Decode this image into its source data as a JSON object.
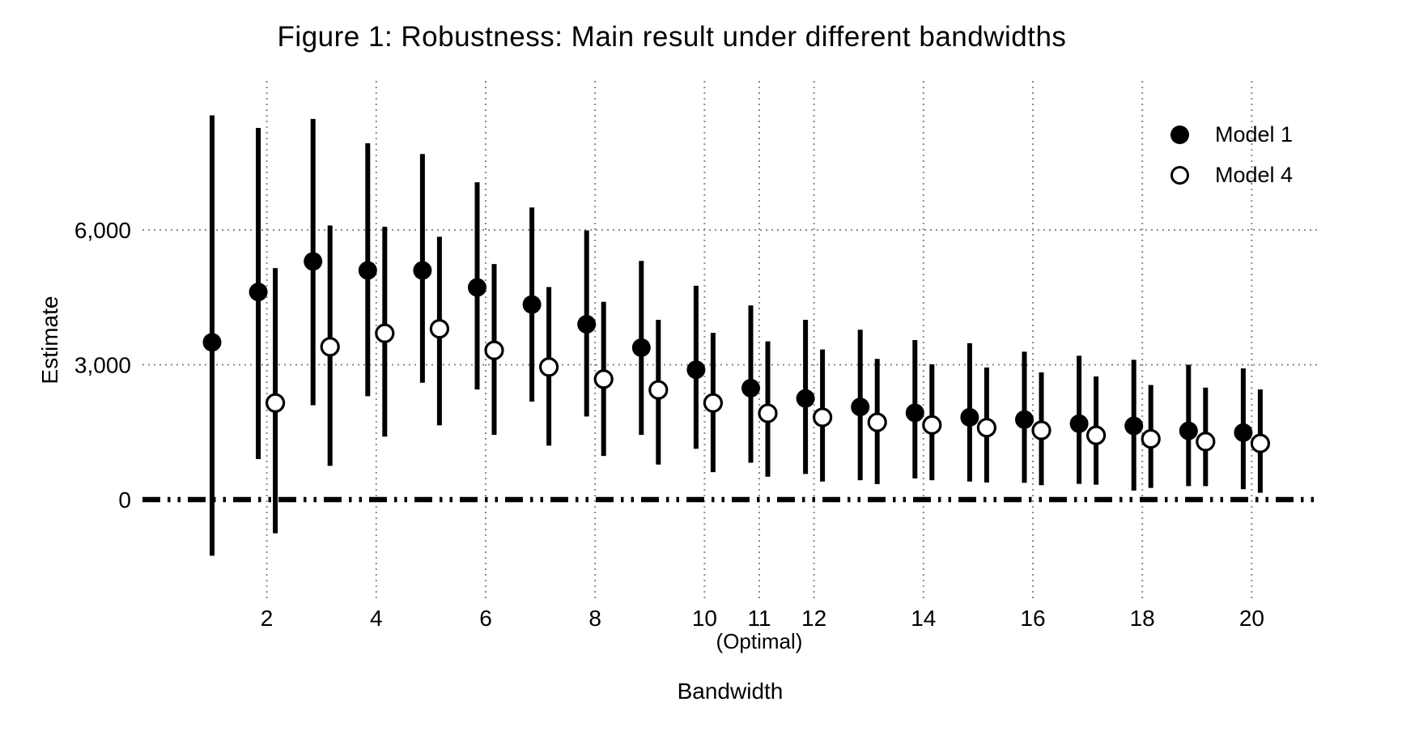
{
  "title": "Figure 1: Robustness: Main result under different bandwidths",
  "legend": [
    {
      "label": "Model 1",
      "marker": "filled-circle"
    },
    {
      "label": "Model 4",
      "marker": "open-circle"
    }
  ],
  "colors": {
    "foreground": "#000000",
    "background": "#ffffff",
    "gridline": "#8a8a8a",
    "model1_fill": "#000000",
    "model4_fill": "#ffffff"
  },
  "chart_data": {
    "type": "scatter",
    "subtype": "dot-and-whisker coefficient plot",
    "title": "Figure 1: Robustness: Main result under different bandwidths",
    "xlabel": "Bandwidth",
    "ylabel": "Estimate",
    "xlim": [
      -0.3,
      21.2
    ],
    "ylim": [
      -2250,
      9310
    ],
    "grid": "dotted",
    "legend_position": "top-right",
    "reference_line_y": 0,
    "x_ticks": [
      {
        "value": 2,
        "label": "2"
      },
      {
        "value": 4,
        "label": "4"
      },
      {
        "value": 6,
        "label": "6"
      },
      {
        "value": 8,
        "label": "8"
      },
      {
        "value": 10,
        "label": "10"
      },
      {
        "value": 11,
        "label": "11",
        "sublabel": "(Optimal)"
      },
      {
        "value": 12,
        "label": "12"
      },
      {
        "value": 14,
        "label": "14"
      },
      {
        "value": 16,
        "label": "16"
      },
      {
        "value": 18,
        "label": "18"
      },
      {
        "value": 20,
        "label": "20"
      }
    ],
    "y_ticks": [
      {
        "value": 0,
        "label": "0"
      },
      {
        "value": 3000,
        "label": "3,000"
      },
      {
        "value": 6000,
        "label": "6,000"
      }
    ],
    "series": [
      {
        "name": "Model 1",
        "marker": "filled",
        "points": [
          {
            "x": 1,
            "est": 3500,
            "lo": -1250,
            "hi": 8550
          },
          {
            "x": 2,
            "est": 4620,
            "lo": 900,
            "hi": 8270
          },
          {
            "x": 3,
            "est": 5300,
            "lo": 2100,
            "hi": 8470
          },
          {
            "x": 4,
            "est": 5100,
            "lo": 2300,
            "hi": 7930
          },
          {
            "x": 5,
            "est": 5100,
            "lo": 2600,
            "hi": 7690
          },
          {
            "x": 6,
            "est": 4720,
            "lo": 2450,
            "hi": 7060
          },
          {
            "x": 7,
            "est": 4340,
            "lo": 2180,
            "hi": 6500
          },
          {
            "x": 8,
            "est": 3900,
            "lo": 1850,
            "hi": 5990
          },
          {
            "x": 9,
            "est": 3380,
            "lo": 1440,
            "hi": 5310
          },
          {
            "x": 10,
            "est": 2890,
            "lo": 1130,
            "hi": 4760
          },
          {
            "x": 11,
            "est": 2480,
            "lo": 820,
            "hi": 4320
          },
          {
            "x": 12,
            "est": 2250,
            "lo": 570,
            "hi": 4000
          },
          {
            "x": 13,
            "est": 2060,
            "lo": 430,
            "hi": 3780
          },
          {
            "x": 14,
            "est": 1930,
            "lo": 470,
            "hi": 3550
          },
          {
            "x": 15,
            "est": 1830,
            "lo": 400,
            "hi": 3480
          },
          {
            "x": 16,
            "est": 1780,
            "lo": 375,
            "hi": 3290
          },
          {
            "x": 17,
            "est": 1690,
            "lo": 350,
            "hi": 3200
          },
          {
            "x": 18,
            "est": 1640,
            "lo": 200,
            "hi": 3110
          },
          {
            "x": 19,
            "est": 1530,
            "lo": 300,
            "hi": 3000
          },
          {
            "x": 20,
            "est": 1490,
            "lo": 230,
            "hi": 2920
          }
        ]
      },
      {
        "name": "Model 4",
        "marker": "open",
        "points": [
          {
            "x": 2,
            "est": 2150,
            "lo": -750,
            "hi": 5150
          },
          {
            "x": 3,
            "est": 3400,
            "lo": 750,
            "hi": 6100
          },
          {
            "x": 4,
            "est": 3700,
            "lo": 1400,
            "hi": 6070
          },
          {
            "x": 5,
            "est": 3800,
            "lo": 1650,
            "hi": 5850
          },
          {
            "x": 6,
            "est": 3320,
            "lo": 1440,
            "hi": 5240
          },
          {
            "x": 7,
            "est": 2950,
            "lo": 1200,
            "hi": 4730
          },
          {
            "x": 8,
            "est": 2680,
            "lo": 970,
            "hi": 4400
          },
          {
            "x": 9,
            "est": 2440,
            "lo": 780,
            "hi": 4000
          },
          {
            "x": 10,
            "est": 2150,
            "lo": 610,
            "hi": 3710
          },
          {
            "x": 11,
            "est": 1920,
            "lo": 510,
            "hi": 3520
          },
          {
            "x": 12,
            "est": 1830,
            "lo": 400,
            "hi": 3340
          },
          {
            "x": 13,
            "est": 1720,
            "lo": 345,
            "hi": 3130
          },
          {
            "x": 14,
            "est": 1660,
            "lo": 430,
            "hi": 3010
          },
          {
            "x": 15,
            "est": 1600,
            "lo": 380,
            "hi": 2940
          },
          {
            "x": 16,
            "est": 1540,
            "lo": 320,
            "hi": 2830
          },
          {
            "x": 17,
            "est": 1430,
            "lo": 330,
            "hi": 2740
          },
          {
            "x": 18,
            "est": 1350,
            "lo": 260,
            "hi": 2550
          },
          {
            "x": 19,
            "est": 1290,
            "lo": 300,
            "hi": 2490
          },
          {
            "x": 20,
            "est": 1250,
            "lo": 150,
            "hi": 2450
          }
        ]
      }
    ]
  }
}
